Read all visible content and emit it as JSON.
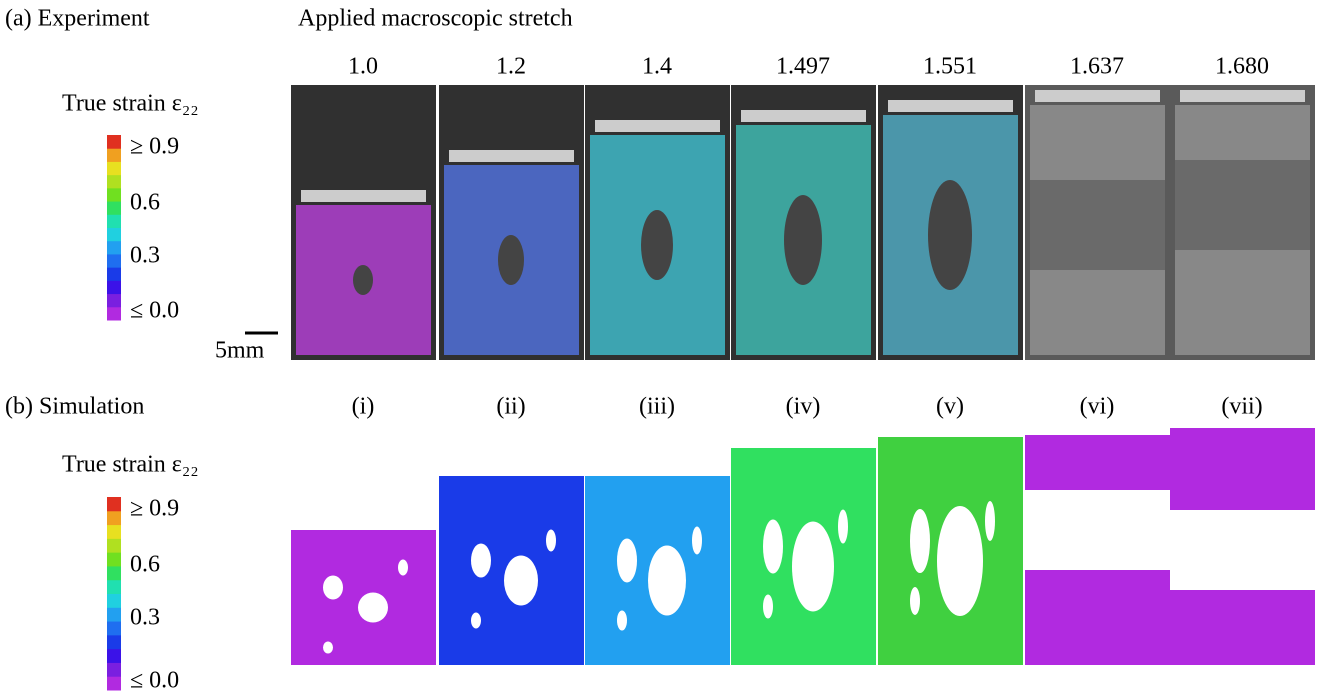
{
  "panel_a": {
    "label": "(a) Experiment",
    "title": "Applied macroscopic stretch",
    "stretches": [
      "1.0",
      "1.2",
      "1.4",
      "1.497",
      "1.551",
      "1.637",
      "1.680"
    ],
    "legend": {
      "title": "True strain ε₂₂",
      "ticks": [
        "≥ 0.9",
        "0.6",
        "0.3",
        "≤ 0.0"
      ]
    },
    "scale_bar": "5mm"
  },
  "panel_b": {
    "label": "(b) Simulation",
    "cases": [
      "(i)",
      "(ii)",
      "(iii)",
      "(iv)",
      "(v)",
      "(vi)",
      "(vii)"
    ],
    "legend": {
      "title": "True strain ε₂₂",
      "ticks": [
        "≥ 0.9",
        "0.6",
        "0.3",
        "≤ 0.0"
      ]
    }
  }
}
